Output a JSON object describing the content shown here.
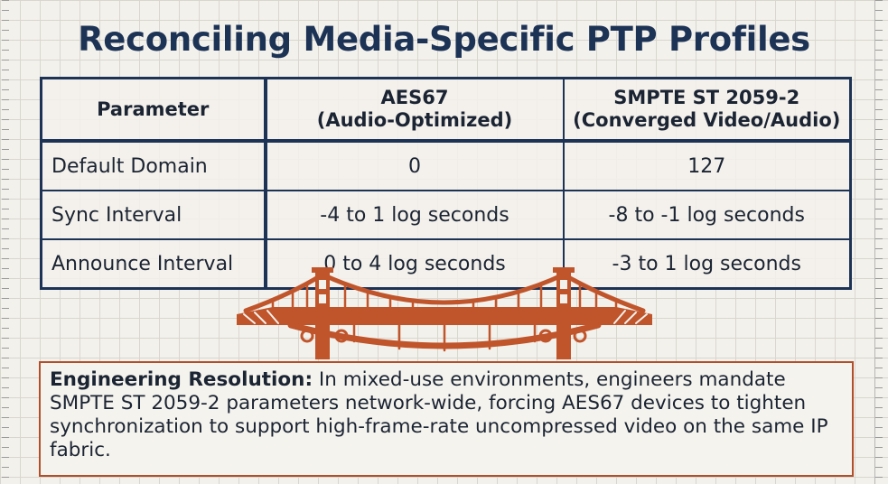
{
  "title": "Reconciling Media-Specific PTP Profiles",
  "table": {
    "headers": {
      "parameter": "Parameter",
      "aes67_line1": "AES67",
      "aes67_line2": "(Audio-Optimized)",
      "smpte_line1": "SMPTE ST 2059-2",
      "smpte_line2": "(Converged Video/Audio)"
    },
    "rows": [
      {
        "parameter": "Default Domain",
        "aes67": "0",
        "smpte": "127"
      },
      {
        "parameter": "Sync Interval",
        "aes67": "-4 to 1 log seconds",
        "smpte": "-8 to -1 log seconds"
      },
      {
        "parameter": "Announce Interval",
        "aes67": "0 to 4 log seconds",
        "smpte": "-3 to 1 log seconds"
      }
    ]
  },
  "bridge": {
    "icon": "suspension-bridge-icon",
    "color": "#c0542a"
  },
  "resolution": {
    "lead": "Engineering Resolution:",
    "text": " In mixed-use environments, engineers mandate SMPTE ST 2059-2 parameters network-wide, forcing AES67 devices to tighten synchronization to support high-frame-rate uncompressed video on the same IP fabric."
  },
  "colors": {
    "title": "#1d3356",
    "table_border": "#1d3356",
    "accent": "#b14f2b"
  }
}
